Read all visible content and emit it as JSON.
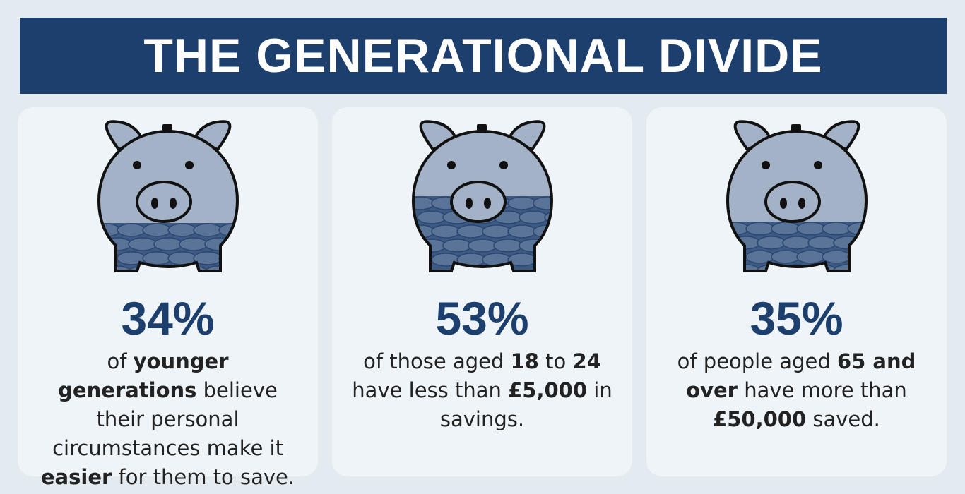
{
  "header": {
    "title": "THE GENERATIONAL DIVIDE"
  },
  "cards": [
    {
      "stat": "34%",
      "description": [
        {
          "text": "of",
          "bold": false
        },
        {
          "text": "younger generations",
          "bold": true
        },
        {
          "text": "believe their personal circumstances make it",
          "bold": false
        },
        {
          "text": "easier",
          "bold": true
        },
        {
          "text": "for them to save.",
          "bold": false
        }
      ]
    },
    {
      "stat": "53%",
      "description": [
        {
          "text": "of those aged",
          "bold": false
        },
        {
          "text": "18",
          "bold": true
        },
        {
          "text": "to",
          "bold": false
        },
        {
          "text": "24",
          "bold": true
        },
        {
          "text": "have less than",
          "bold": false
        },
        {
          "text": "£5,000",
          "bold": true
        },
        {
          "text": "in savings.",
          "bold": false
        }
      ]
    },
    {
      "stat": "35%",
      "description": [
        {
          "text": "of people aged",
          "bold": false
        },
        {
          "text": "65 and over",
          "bold": true
        },
        {
          "text": "have more than",
          "bold": false
        },
        {
          "text": "£50,000",
          "bold": true
        },
        {
          "text": "saved.",
          "bold": false
        }
      ]
    }
  ]
}
